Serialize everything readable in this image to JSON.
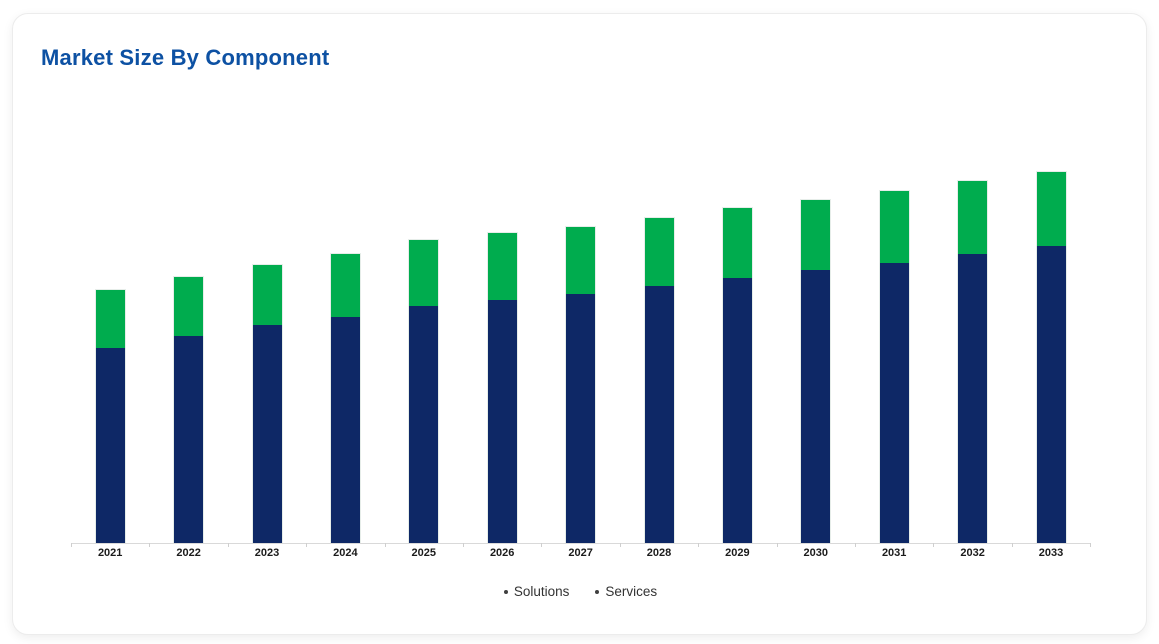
{
  "header": {
    "title": "Market Size By Component"
  },
  "colors": {
    "title_text": "#0d51a3",
    "solutions_bar": "#0e2866",
    "services_bar": "#00ac4e",
    "axis_line": "#d9d9d9",
    "tick": "#cfcfcf",
    "year_label": "#1b1b1b",
    "legend_marker": "#3f3f3f",
    "legend_text": "#333333",
    "card_border": "#ececec",
    "card_background": "#ffffff"
  },
  "legend": {
    "items": [
      {
        "label": "Solutions"
      },
      {
        "label": "Services"
      }
    ]
  },
  "chart_data": {
    "type": "bar",
    "stacked": true,
    "title": "Market Size By Component",
    "xlabel": "",
    "ylabel": "",
    "units": "relative market size (2033 total = 100, no y-axis shown)",
    "ylim": [
      0,
      105
    ],
    "grid": false,
    "legend_position": "bottom",
    "categories": [
      "2021",
      "2022",
      "2023",
      "2024",
      "2025",
      "2026",
      "2027",
      "2028",
      "2029",
      "2030",
      "2031",
      "2032",
      "2033"
    ],
    "series": [
      {
        "name": "Solutions",
        "color": "#0e2866",
        "values": [
          52.5,
          55.7,
          58.7,
          60.9,
          63.9,
          65.5,
          67.1,
          69.3,
          71.4,
          73.4,
          75.4,
          77.7,
          80.0
        ]
      },
      {
        "name": "Services",
        "color": "#00ac4e",
        "values": [
          15.7,
          16.0,
          16.2,
          16.9,
          17.6,
          17.9,
          18.0,
          18.3,
          18.7,
          18.9,
          19.3,
          19.7,
          20.0
        ]
      }
    ]
  }
}
